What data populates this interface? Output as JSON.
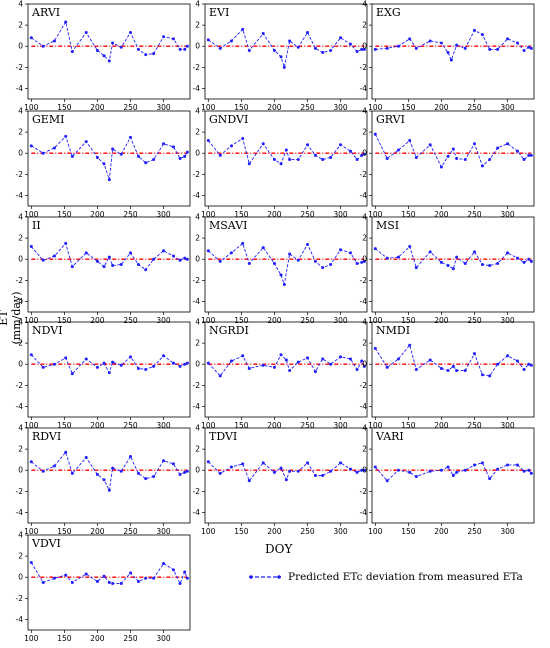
{
  "figure": {
    "ylabel": "ET (mm/day)",
    "xlabel": "DOY",
    "legend_label": "Predicted ETc deviation from measured ETa"
  },
  "colors": {
    "series": "#1f1fff",
    "zero_line": "#ff0000"
  },
  "chart_data": [
    {
      "type": "line",
      "title": "ARVI",
      "xlim": [
        95,
        340
      ],
      "ylim": [
        -5,
        4
      ],
      "xticks": [
        100,
        150,
        200,
        250,
        300
      ],
      "yticks": [
        4,
        2,
        0,
        -2,
        -4
      ],
      "x": [
        100,
        118,
        135,
        152,
        162,
        183,
        200,
        210,
        218,
        223,
        236,
        250,
        262,
        273,
        285,
        300,
        315,
        325,
        332,
        336
      ],
      "values": [
        0.8,
        0.0,
        0.5,
        2.3,
        -0.5,
        1.3,
        -0.4,
        -0.9,
        -1.4,
        0.3,
        -0.1,
        1.3,
        -0.3,
        -0.8,
        -0.7,
        0.9,
        0.7,
        -0.3,
        -0.3,
        0.0
      ]
    },
    {
      "type": "line",
      "title": "EVI",
      "xlim": [
        95,
        340
      ],
      "ylim": [
        -5,
        4
      ],
      "xticks": [
        100,
        150,
        200,
        250,
        300
      ],
      "yticks": [
        4,
        2,
        0,
        -2,
        -4
      ],
      "x": [
        100,
        118,
        135,
        152,
        162,
        183,
        200,
        210,
        215,
        223,
        236,
        250,
        262,
        273,
        285,
        300,
        315,
        325,
        332,
        336
      ],
      "values": [
        0.6,
        -0.2,
        0.5,
        1.6,
        -0.4,
        1.2,
        -0.4,
        -1.0,
        -2.0,
        0.5,
        -0.1,
        1.3,
        -0.2,
        -0.6,
        -0.4,
        0.8,
        0.2,
        -0.5,
        -0.3,
        -0.3
      ]
    },
    {
      "type": "line",
      "title": "EXG",
      "xlim": [
        95,
        340
      ],
      "ylim": [
        -5,
        4
      ],
      "xticks": [
        100,
        150,
        200,
        250,
        300
      ],
      "yticks": [
        4,
        2,
        0,
        -2,
        -4
      ],
      "x": [
        100,
        118,
        135,
        152,
        162,
        183,
        200,
        210,
        215,
        223,
        236,
        250,
        262,
        273,
        285,
        300,
        315,
        325,
        332,
        336
      ],
      "values": [
        -0.3,
        -0.2,
        0.0,
        0.7,
        -0.2,
        0.5,
        0.3,
        -0.6,
        -1.3,
        0.1,
        -0.2,
        1.5,
        1.1,
        -0.3,
        -0.3,
        0.7,
        0.3,
        -0.4,
        -0.1,
        -0.2
      ]
    },
    {
      "type": "line",
      "title": "GEMI",
      "xlim": [
        95,
        340
      ],
      "ylim": [
        -5,
        4
      ],
      "xticks": [
        100,
        150,
        200,
        250,
        300
      ],
      "yticks": [
        4,
        2,
        0,
        -2,
        -4
      ],
      "x": [
        100,
        118,
        135,
        152,
        162,
        183,
        200,
        210,
        218,
        223,
        236,
        250,
        262,
        273,
        285,
        300,
        315,
        325,
        332,
        336
      ],
      "values": [
        0.7,
        0.0,
        0.5,
        1.6,
        -0.3,
        1.1,
        -0.4,
        -1.0,
        -2.5,
        0.4,
        -0.1,
        1.5,
        -0.3,
        -0.9,
        -0.6,
        0.9,
        0.6,
        -0.5,
        -0.3,
        0.1
      ]
    },
    {
      "type": "line",
      "title": "GNDVI",
      "xlim": [
        95,
        340
      ],
      "ylim": [
        -5,
        4
      ],
      "xticks": [
        100,
        150,
        200,
        250,
        300
      ],
      "yticks": [
        4,
        2,
        0,
        -2,
        -4
      ],
      "x": [
        100,
        118,
        135,
        152,
        162,
        183,
        200,
        210,
        218,
        223,
        236,
        250,
        262,
        273,
        285,
        300,
        315,
        325,
        332,
        336
      ],
      "values": [
        1.2,
        -0.2,
        0.7,
        1.4,
        -1.0,
        0.9,
        -0.6,
        -1.0,
        0.3,
        -0.6,
        -0.6,
        0.8,
        -0.2,
        -0.6,
        -0.4,
        0.8,
        0.2,
        -0.6,
        -0.2,
        -0.1
      ]
    },
    {
      "type": "line",
      "title": "GRVI",
      "xlim": [
        95,
        340
      ],
      "ylim": [
        -5,
        4
      ],
      "xticks": [
        100,
        150,
        200,
        250,
        300
      ],
      "yticks": [
        4,
        2,
        0,
        -2,
        -4
      ],
      "x": [
        100,
        118,
        135,
        152,
        162,
        183,
        200,
        210,
        218,
        223,
        236,
        250,
        262,
        273,
        285,
        300,
        315,
        325,
        332,
        336
      ],
      "values": [
        1.8,
        -0.5,
        0.3,
        1.2,
        -0.4,
        0.8,
        -1.3,
        -0.3,
        0.4,
        -0.5,
        -0.6,
        0.9,
        -1.2,
        -0.6,
        0.5,
        0.9,
        0.2,
        -0.6,
        -0.2,
        -0.2
      ]
    },
    {
      "type": "line",
      "title": "II",
      "xlim": [
        95,
        340
      ],
      "ylim": [
        -5,
        4
      ],
      "xticks": [
        100,
        150,
        200,
        250,
        300
      ],
      "yticks": [
        4,
        2,
        0,
        -2,
        -4
      ],
      "x": [
        100,
        118,
        135,
        152,
        162,
        183,
        200,
        210,
        218,
        223,
        236,
        250,
        262,
        273,
        285,
        300,
        315,
        325,
        332,
        336
      ],
      "values": [
        1.2,
        -0.1,
        0.3,
        1.5,
        -0.7,
        0.6,
        -0.2,
        -0.7,
        0.2,
        -0.6,
        -0.5,
        0.6,
        -0.5,
        -1.0,
        0.0,
        0.8,
        0.3,
        -0.1,
        0.1,
        0.0
      ]
    },
    {
      "type": "line",
      "title": "MSAVI",
      "xlim": [
        95,
        340
      ],
      "ylim": [
        -5,
        4
      ],
      "xticks": [
        100,
        150,
        200,
        250,
        300
      ],
      "yticks": [
        4,
        2,
        0,
        -2,
        -4
      ],
      "x": [
        100,
        118,
        135,
        152,
        162,
        183,
        200,
        210,
        215,
        223,
        236,
        250,
        262,
        273,
        285,
        300,
        315,
        325,
        332,
        336
      ],
      "values": [
        0.8,
        -0.2,
        0.6,
        1.5,
        -0.4,
        1.1,
        -0.4,
        -1.5,
        -2.4,
        0.5,
        -0.1,
        1.4,
        -0.2,
        -0.8,
        -0.5,
        0.9,
        0.6,
        -0.4,
        -0.3,
        -0.2
      ]
    },
    {
      "type": "line",
      "title": "MSI",
      "xlim": [
        95,
        340
      ],
      "ylim": [
        -5,
        4
      ],
      "xticks": [
        100,
        150,
        200,
        250,
        300
      ],
      "yticks": [
        4,
        2,
        0,
        -2,
        -4
      ],
      "x": [
        100,
        118,
        135,
        152,
        162,
        183,
        200,
        210,
        218,
        223,
        236,
        250,
        262,
        273,
        285,
        300,
        315,
        325,
        332,
        336
      ],
      "values": [
        1.0,
        0.1,
        0.2,
        1.2,
        -0.8,
        0.7,
        -0.3,
        -0.6,
        -0.9,
        0.2,
        -0.4,
        0.7,
        -0.5,
        -0.6,
        -0.4,
        0.6,
        0.1,
        -0.3,
        0.0,
        -0.2
      ]
    },
    {
      "type": "line",
      "title": "NDVI",
      "xlim": [
        95,
        340
      ],
      "ylim": [
        -5,
        4
      ],
      "xticks": [
        100,
        150,
        200,
        250,
        300
      ],
      "yticks": [
        4,
        2,
        0,
        -2,
        -4
      ],
      "x": [
        100,
        118,
        135,
        152,
        162,
        183,
        200,
        210,
        218,
        223,
        236,
        250,
        262,
        273,
        285,
        300,
        315,
        325,
        332,
        336
      ],
      "values": [
        0.9,
        -0.3,
        0.0,
        0.6,
        -0.9,
        0.5,
        -0.3,
        0.1,
        -0.8,
        0.2,
        -0.1,
        0.7,
        -0.4,
        -0.5,
        -0.2,
        0.8,
        0.1,
        -0.2,
        0.0,
        0.1
      ]
    },
    {
      "type": "line",
      "title": "NGRDI",
      "xlim": [
        95,
        340
      ],
      "ylim": [
        -5,
        4
      ],
      "xticks": [
        100,
        150,
        200,
        250,
        300
      ],
      "yticks": [
        4,
        2,
        0,
        -2,
        -4
      ],
      "x": [
        100,
        118,
        135,
        152,
        162,
        183,
        200,
        210,
        218,
        223,
        236,
        250,
        262,
        273,
        285,
        300,
        315,
        325,
        332,
        336
      ],
      "values": [
        0.1,
        -1.1,
        0.3,
        0.8,
        -0.4,
        -0.1,
        -0.3,
        0.9,
        0.4,
        -0.6,
        0.2,
        0.6,
        -0.7,
        0.5,
        0.0,
        0.7,
        0.5,
        -0.5,
        0.3,
        -0.2
      ]
    },
    {
      "type": "line",
      "title": "NMDI",
      "xlim": [
        95,
        340
      ],
      "ylim": [
        -5,
        4
      ],
      "xticks": [
        100,
        150,
        200,
        250,
        300
      ],
      "yticks": [
        4,
        2,
        0,
        -2,
        -4
      ],
      "x": [
        100,
        118,
        135,
        152,
        162,
        183,
        200,
        210,
        218,
        223,
        236,
        250,
        262,
        273,
        285,
        300,
        315,
        325,
        332,
        336
      ],
      "values": [
        1.5,
        -0.3,
        0.5,
        1.8,
        -0.5,
        0.4,
        -0.4,
        -0.6,
        -0.2,
        -0.6,
        -0.6,
        1.0,
        -1.0,
        -1.1,
        0.0,
        0.8,
        0.3,
        -0.5,
        0.0,
        -0.1
      ]
    },
    {
      "type": "line",
      "title": "RDVI",
      "xlim": [
        95,
        340
      ],
      "ylim": [
        -5,
        4
      ],
      "xticks": [
        100,
        150,
        200,
        250,
        300
      ],
      "yticks": [
        4,
        2,
        0,
        -2,
        -4
      ],
      "x": [
        100,
        118,
        135,
        152,
        162,
        183,
        200,
        210,
        218,
        223,
        236,
        250,
        262,
        273,
        285,
        300,
        315,
        325,
        332,
        336
      ],
      "values": [
        0.8,
        -0.1,
        0.4,
        1.7,
        -0.3,
        1.2,
        -0.4,
        -0.9,
        -1.9,
        0.2,
        -0.1,
        1.3,
        -0.3,
        -0.8,
        -0.6,
        0.9,
        0.6,
        -0.4,
        -0.2,
        -0.1
      ]
    },
    {
      "type": "line",
      "title": "TDVI",
      "xlim": [
        95,
        340
      ],
      "ylim": [
        -5,
        4
      ],
      "xticks": [
        100,
        150,
        200,
        250,
        300
      ],
      "yticks": [
        4,
        2,
        0,
        -2,
        -4
      ],
      "x": [
        100,
        118,
        135,
        152,
        162,
        183,
        200,
        210,
        218,
        223,
        236,
        250,
        262,
        273,
        285,
        300,
        315,
        325,
        332,
        336
      ],
      "values": [
        0.8,
        -0.3,
        0.3,
        0.6,
        -1.0,
        0.7,
        -0.2,
        0.2,
        -0.9,
        -0.1,
        -0.1,
        0.7,
        -0.5,
        -0.5,
        -0.1,
        0.7,
        0.1,
        -0.2,
        0.0,
        0.0
      ]
    },
    {
      "type": "line",
      "title": "VARI",
      "xlim": [
        95,
        340
      ],
      "ylim": [
        -5,
        4
      ],
      "xticks": [
        100,
        150,
        200,
        250,
        300
      ],
      "yticks": [
        4,
        2,
        0,
        -2,
        -4
      ],
      "x": [
        100,
        118,
        135,
        152,
        162,
        183,
        200,
        210,
        218,
        223,
        236,
        250,
        262,
        273,
        285,
        300,
        315,
        325,
        332,
        336
      ],
      "values": [
        0.3,
        -1.0,
        0.0,
        -0.2,
        -0.6,
        -0.1,
        0.0,
        0.3,
        -0.5,
        -0.2,
        0.0,
        0.5,
        0.7,
        -0.8,
        0.1,
        0.5,
        0.5,
        -0.1,
        0.0,
        -0.3
      ]
    },
    {
      "type": "line",
      "title": "VDVI",
      "xlim": [
        95,
        340
      ],
      "ylim": [
        -5,
        4
      ],
      "xticks": [
        100,
        150,
        200,
        250,
        300
      ],
      "yticks": [
        4,
        2,
        0,
        -2,
        -4
      ],
      "x": [
        100,
        118,
        135,
        152,
        162,
        183,
        200,
        210,
        218,
        223,
        236,
        250,
        262,
        273,
        285,
        300,
        315,
        325,
        332,
        336
      ],
      "values": [
        1.4,
        -0.5,
        -0.1,
        0.2,
        -0.5,
        0.3,
        -0.4,
        0.1,
        -0.5,
        -0.6,
        -0.6,
        0.4,
        -0.4,
        -0.1,
        -0.1,
        1.3,
        0.7,
        -0.6,
        0.5,
        -0.1
      ]
    }
  ]
}
